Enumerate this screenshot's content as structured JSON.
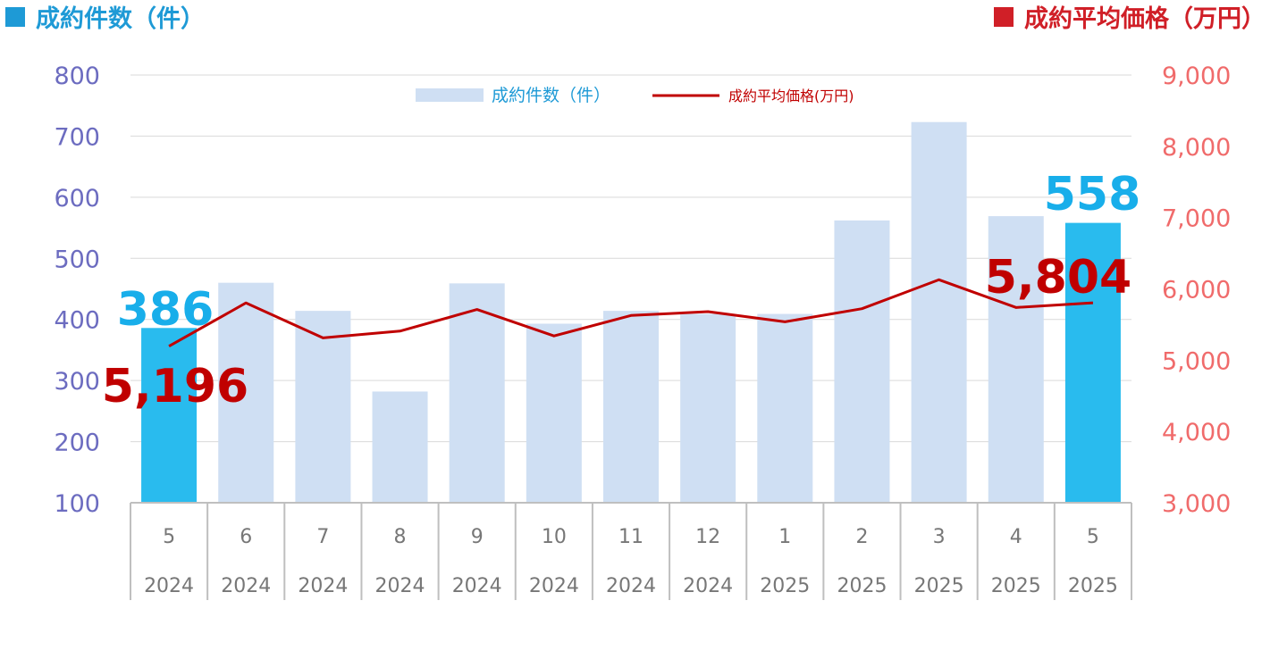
{
  "left_axis_title": "成約件数（件）",
  "right_axis_title": "成約平均価格（万円）",
  "colors": {
    "left_title": "#1E9AD6",
    "left_marker": "#1E9AD6",
    "right_title": "#D01F27",
    "right_marker": "#D01F27",
    "left_ticks": "#6C6CC0",
    "right_ticks": "#F06B6B",
    "bar": "#CFDFF3",
    "bar_highlight": "#29BBEE",
    "line": "#C00000",
    "grid": "#D9D9D9",
    "callout_count": "#18AEEA",
    "callout_price": "#C00000"
  },
  "chart_data": {
    "type": "bar+line",
    "categories": [
      "5",
      "6",
      "7",
      "8",
      "9",
      "10",
      "11",
      "12",
      "1",
      "2",
      "3",
      "4",
      "5"
    ],
    "years": [
      "2024",
      "2024",
      "2024",
      "2024",
      "2024",
      "2024",
      "2024",
      "2024",
      "2025",
      "2025",
      "2025",
      "2025",
      "2025"
    ],
    "series": [
      {
        "name": "成約件数（件）",
        "type": "bar",
        "axis": "left",
        "values": [
          386,
          460,
          414,
          282,
          459,
          393,
          414,
          409,
          409,
          562,
          723,
          569,
          558
        ],
        "highlight": [
          0,
          12
        ]
      },
      {
        "name": "成約平均価格(万円)",
        "type": "line",
        "axis": "right",
        "values": [
          5196,
          5803,
          5313,
          5408,
          5711,
          5340,
          5627,
          5680,
          5538,
          5722,
          6128,
          5739,
          5804
        ]
      }
    ],
    "left_axis": {
      "min": 100,
      "max": 800,
      "ticks": [
        100,
        200,
        300,
        400,
        500,
        600,
        700,
        800
      ]
    },
    "right_axis": {
      "min": 3000,
      "max": 9000,
      "ticks": [
        "3,000",
        "4,000",
        "5,000",
        "6,000",
        "7,000",
        "8,000",
        "9,000"
      ]
    },
    "left_tick_labels": [
      "100",
      "200",
      "300",
      "400",
      "500",
      "600",
      "700",
      "800"
    ],
    "grid": true,
    "legend_position": "top-center",
    "callouts": [
      {
        "series": 0,
        "index": 0,
        "text": "386"
      },
      {
        "series": 1,
        "index": 0,
        "text": "5,196"
      },
      {
        "series": 0,
        "index": 12,
        "text": "558"
      },
      {
        "series": 1,
        "index": 12,
        "text": "5,804"
      }
    ]
  }
}
